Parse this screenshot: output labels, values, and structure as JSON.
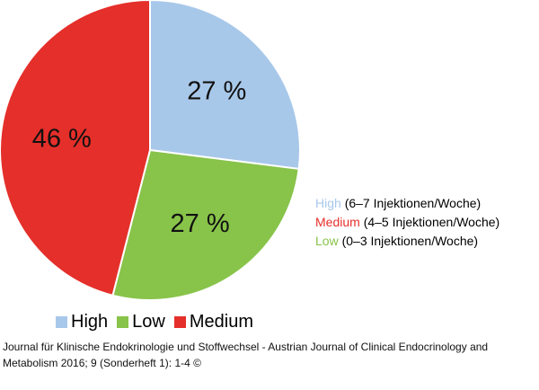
{
  "chart_data": {
    "type": "pie",
    "slices": [
      {
        "name": "High",
        "value": 27,
        "label": "27 %",
        "color": "#a8c8ea"
      },
      {
        "name": "Low",
        "value": 27,
        "label": "27 %",
        "color": "#88c34a"
      },
      {
        "name": "Medium",
        "value": 46,
        "label": "46 %",
        "color": "#e52f2a"
      }
    ],
    "start": "12 o'clock",
    "direction": "clockwise",
    "legend_position": "bottom"
  },
  "side_legend": [
    {
      "name": "High",
      "detail": "(6–7 Injektionen/Woche)",
      "color": "#a8c8ea"
    },
    {
      "name": "Medium",
      "detail": "(4–5 Injektionen/Woche)",
      "color": "#e52f2a"
    },
    {
      "name": "Low",
      "detail": "(0–3 Injektionen/Woche)",
      "color": "#88c34a"
    }
  ],
  "bottom_legend": [
    {
      "name": "High",
      "color": "#a8c8ea"
    },
    {
      "name": "Low",
      "color": "#88c34a"
    },
    {
      "name": "Medium",
      "color": "#e52f2a"
    }
  ],
  "citation": "Journal für Klinische Endokrinologie und Stoffwechsel - Austrian Journal of Clinical Endocrinology and Metabolism 2016; 9 (Sonderheft 1): 1-4 ©"
}
